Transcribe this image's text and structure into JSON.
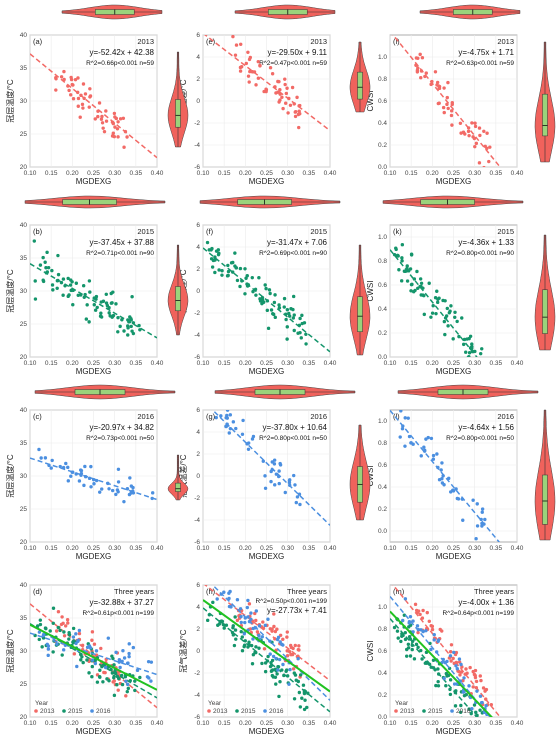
{
  "colors": {
    "y2013": "#f26a66",
    "y2015": "#14956b",
    "y2016": "#4b8fe0",
    "fit_all": "#21c221",
    "violin": "#f0625c",
    "box": "#9ad37b",
    "grid": "#ebebeb"
  },
  "legend": {
    "title": "Year",
    "items": [
      "2013",
      "2015",
      "2016"
    ]
  },
  "chart_data": [
    {
      "id": "a",
      "letter": "(a)",
      "year_label": "2013",
      "type": "scatter",
      "xlabel": "MGDEXG",
      "ylabel": "冠层温度/°C",
      "xlim": [
        0.1,
        0.4
      ],
      "xticks": [
        "0.10",
        "0.15",
        "0.20",
        "0.25",
        "0.30",
        "0.35",
        "0.40"
      ],
      "ylim": [
        20,
        40
      ],
      "yticks": [
        "20",
        "25",
        "30",
        "35",
        "40"
      ],
      "equation": "y=-52.42x + 42.38",
      "stats": "R^2=0.66p<0.001 n=59",
      "series": [
        {
          "year": "2013",
          "fit": [
            -52.42,
            42.38
          ],
          "x_range": [
            0.16,
            0.33
          ],
          "n": 59
        }
      ],
      "violin": {
        "median": 29,
        "q1": 27.5,
        "q3": 31,
        "min": 25,
        "max": 37
      },
      "top_violin": {
        "median": 0.255,
        "q1": 0.22,
        "q3": 0.29,
        "min": 0.16,
        "max": 0.34
      }
    },
    {
      "id": "e",
      "letter": "(e)",
      "year_label": "2013",
      "type": "scatter",
      "xlabel": "MGDEXG",
      "ylabel": "冠气温差/°C",
      "xlim": [
        0.1,
        0.4
      ],
      "xticks": [
        "0.10",
        "0.15",
        "0.20",
        "0.25",
        "0.30",
        "0.35",
        "0.40"
      ],
      "ylim": [
        -6,
        6
      ],
      "yticks": [
        "-6",
        "-4",
        "-2",
        "0",
        "2",
        "4",
        "6"
      ],
      "equation": "y=-29.50x + 9.11",
      "stats": "R^2=0.47p<0.001 n=59",
      "series": [
        {
          "year": "2013",
          "fit": [
            -29.5,
            9.11
          ],
          "x_range": [
            0.17,
            0.33
          ],
          "n": 59
        }
      ],
      "violin": {
        "median": 0.8,
        "q1": -0.3,
        "q3": 2.2,
        "min": -1.5,
        "max": 5
      },
      "top_violin": {
        "median": 0.255,
        "q1": 0.22,
        "q3": 0.29,
        "min": 0.16,
        "max": 0.34
      }
    },
    {
      "id": "i",
      "letter": "(i)",
      "year_label": "2013",
      "type": "scatter",
      "xlabel": "MGDEXG",
      "ylabel": "CWSI",
      "xlim": [
        0.1,
        0.4
      ],
      "xticks": [
        "0.10",
        "0.15",
        "0.20",
        "0.25",
        "0.30",
        "0.35",
        "0.40"
      ],
      "ylim": [
        0,
        1.2
      ],
      "yticks": [
        "0.0",
        "0.2",
        "0.4",
        "0.6",
        "0.8",
        "1.0"
      ],
      "equation": "y=-4.75x + 1.71",
      "stats": "R^2=0.63p<0.001 n=59",
      "series": [
        {
          "year": "2013",
          "fit": [
            -4.75,
            1.71
          ],
          "x_range": [
            0.16,
            0.34
          ],
          "n": 59
        }
      ],
      "violin": {
        "median": 0.4,
        "q1": 0.3,
        "q3": 0.7,
        "min": 0.05,
        "max": 1.2
      },
      "top_violin": {
        "median": 0.255,
        "q1": 0.22,
        "q3": 0.29,
        "min": 0.16,
        "max": 0.34
      }
    },
    {
      "id": "b",
      "letter": "(b)",
      "year_label": "2015",
      "type": "scatter",
      "xlabel": "MGDEXG",
      "ylabel": "冠层温度/°C",
      "xlim": [
        0.1,
        0.4
      ],
      "xticks": [
        "0.10",
        "0.15",
        "0.20",
        "0.25",
        "0.30",
        "0.35",
        "0.40"
      ],
      "ylim": [
        20,
        40
      ],
      "yticks": [
        "20",
        "25",
        "30",
        "35",
        "40"
      ],
      "equation": "y=-37.45x + 37.88",
      "stats": "R^2=0.71p<0.001 n=90",
      "series": [
        {
          "year": "2015",
          "fit": [
            -37.45,
            37.88
          ],
          "x_range": [
            0.11,
            0.36
          ],
          "n": 90
        }
      ],
      "violin": {
        "median": 29,
        "q1": 27.5,
        "q3": 31,
        "min": 24,
        "max": 37
      },
      "top_violin": {
        "median": 0.22,
        "q1": 0.17,
        "q3": 0.27,
        "min": 0.1,
        "max": 0.36
      }
    },
    {
      "id": "f",
      "letter": "(f)",
      "year_label": "2015",
      "type": "scatter",
      "xlabel": "MGDEXG",
      "ylabel": "冠气温差/°C",
      "xlim": [
        0.1,
        0.4
      ],
      "xticks": [
        "0.10",
        "0.15",
        "0.20",
        "0.25",
        "0.30",
        "0.35",
        "0.40"
      ],
      "ylim": [
        -6,
        6
      ],
      "yticks": [
        "-6",
        "-4",
        "-2",
        "0",
        "2",
        "4",
        "6"
      ],
      "equation": "y=-31.47x + 7.06",
      "stats": "R^2=0.69p<0.001 n=90",
      "series": [
        {
          "year": "2015",
          "fit": [
            -31.47,
            7.06
          ],
          "x_range": [
            0.11,
            0.35
          ],
          "n": 90
        }
      ],
      "violin": {
        "median": 0,
        "q1": -1.2,
        "q3": 1.5,
        "min": -3,
        "max": 5.5
      },
      "top_violin": {
        "median": 0.22,
        "q1": 0.17,
        "q3": 0.27,
        "min": 0.1,
        "max": 0.36
      }
    },
    {
      "id": "k",
      "letter": "(k)",
      "year_label": "2015",
      "type": "scatter",
      "xlabel": "MGDEXG",
      "ylabel": "CWSI",
      "xlim": [
        0.1,
        0.4
      ],
      "xticks": [
        "0.10",
        "0.15",
        "0.20",
        "0.25",
        "0.30",
        "0.35",
        "0.40"
      ],
      "ylim": [
        0,
        1.1
      ],
      "yticks": [
        "0.0",
        "0.2",
        "0.4",
        "0.6",
        "0.8",
        "1.0"
      ],
      "equation": "y=-4.36x + 1.33",
      "stats": "R^2=0.80p<0.001 n=90",
      "series": [
        {
          "year": "2015",
          "fit": [
            -4.36,
            1.33
          ],
          "x_range": [
            0.11,
            0.33
          ],
          "n": 90
        }
      ],
      "violin": {
        "median": 0.3,
        "q1": 0.15,
        "q3": 0.55,
        "min": 0,
        "max": 1.05
      },
      "top_violin": {
        "median": 0.22,
        "q1": 0.17,
        "q3": 0.27,
        "min": 0.1,
        "max": 0.36
      }
    },
    {
      "id": "c",
      "letter": "(c)",
      "year_label": "2016",
      "type": "scatter",
      "xlabel": "MGDEXG",
      "ylabel": "冠层温度/°C",
      "xlim": [
        0.1,
        0.4
      ],
      "xticks": [
        "0.10",
        "0.15",
        "0.20",
        "0.25",
        "0.30",
        "0.35",
        "0.40"
      ],
      "ylim": [
        20,
        40
      ],
      "yticks": [
        "20",
        "25",
        "30",
        "35",
        "40"
      ],
      "equation": "y=-20.97x + 34.82",
      "stats": "R^2=0.73p<0.001 n=50",
      "series": [
        {
          "year": "2016",
          "fit": [
            -20.97,
            34.82
          ],
          "x_range": [
            0.12,
            0.39
          ],
          "n": 50
        }
      ],
      "violin": {
        "median": 29,
        "q1": 28.5,
        "q3": 30,
        "min": 27,
        "max": 35
      },
      "top_violin": {
        "median": 0.25,
        "q1": 0.2,
        "q3": 0.3,
        "min": 0.12,
        "max": 0.4
      }
    },
    {
      "id": "g",
      "letter": "(g)",
      "year_label": "2016",
      "type": "scatter",
      "xlabel": "MGDEXG",
      "ylabel": "冠气温差/°C",
      "xlim": [
        0.1,
        0.4
      ],
      "xticks": [
        "0.10",
        "0.15",
        "0.20",
        "0.25",
        "0.30",
        "0.35",
        "0.40"
      ],
      "ylim": [
        -6,
        6
      ],
      "yticks": [
        "-6",
        "-4",
        "-2",
        "0",
        "2",
        "4",
        "6"
      ],
      "equation": "y=-37.80x + 10.64",
      "stats": "R^2=0.80p<0.001 n=50",
      "series": [
        {
          "year": "2016",
          "fit": [
            -37.8,
            10.64
          ],
          "x_range": [
            0.13,
            0.33
          ],
          "n": 50
        }
      ],
      "violin": {
        "median": 0,
        "q1": -1.5,
        "q3": 1.5,
        "min": -3,
        "max": 5
      },
      "top_violin": {
        "median": 0.25,
        "q1": 0.2,
        "q3": 0.3,
        "min": 0.12,
        "max": 0.4
      }
    },
    {
      "id": "l",
      "letter": "(l)",
      "year_label": "2016",
      "type": "scatter",
      "xlabel": "MGDEXG",
      "ylabel": "CWSI",
      "xlim": [
        0.1,
        0.4
      ],
      "xticks": [
        "0.10",
        "0.15",
        "0.20",
        "0.25",
        "0.30",
        "0.35",
        "0.40"
      ],
      "ylim": [
        -0.1,
        1.1
      ],
      "yticks": [
        "0.0",
        "0.2",
        "0.4",
        "0.6",
        "0.8",
        "1.0"
      ],
      "equation": "y=-4.64x + 1.56",
      "stats": "R^2=0.80p<0.001 n=50",
      "series": [
        {
          "year": "2016",
          "fit": [
            -4.64,
            1.56
          ],
          "x_range": [
            0.12,
            0.33
          ],
          "n": 50
        }
      ],
      "violin": {
        "median": 0.3,
        "q1": 0.12,
        "q3": 0.5,
        "min": 0,
        "max": 1.0
      },
      "top_violin": {
        "median": 0.25,
        "q1": 0.2,
        "q3": 0.3,
        "min": 0.12,
        "max": 0.4
      }
    },
    {
      "id": "d",
      "letter": "(d)",
      "year_label": "Three years",
      "type": "scatter",
      "xlabel": "MGDEXG",
      "ylabel": "冠层温度/°C",
      "xlim": [
        0.1,
        0.4
      ],
      "xticks": [
        "0.10",
        "0.15",
        "0.20",
        "0.25",
        "0.30",
        "0.35",
        "0.40"
      ],
      "ylim": [
        20,
        40
      ],
      "yticks": [
        "20",
        "25",
        "30",
        "35",
        "40"
      ],
      "equation": "y=-32.88x + 37.27",
      "stats": "R^2=0.61p<0.001 n=199",
      "series": [
        {
          "year": "2013",
          "fit": [
            -52.42,
            42.38
          ],
          "x_range": [
            0.16,
            0.33
          ],
          "n": 59
        },
        {
          "year": "2015",
          "fit": [
            -37.45,
            37.88
          ],
          "x_range": [
            0.11,
            0.36
          ],
          "n": 90
        },
        {
          "year": "2016",
          "fit": [
            -20.97,
            34.82
          ],
          "x_range": [
            0.12,
            0.39
          ],
          "n": 50
        }
      ],
      "overall_fit": [
        -32.88,
        37.27
      ],
      "legend_in_plot": true
    },
    {
      "id": "h",
      "letter": "(h)",
      "year_label": "Three years",
      "type": "scatter",
      "xlabel": "MGDEXG",
      "ylabel": "冠气温差/°C",
      "xlim": [
        0.1,
        0.4
      ],
      "xticks": [
        "0.10",
        "0.15",
        "0.20",
        "0.25",
        "0.30",
        "0.35",
        "0.40"
      ],
      "ylim": [
        -6,
        6
      ],
      "yticks": [
        "-6",
        "-4",
        "-2",
        "0",
        "2",
        "4",
        "6"
      ],
      "equation": "y=-27.73x + 7.41",
      "stats": "R^2=0.50p<0.001 n=199",
      "series": [
        {
          "year": "2013",
          "fit": [
            -29.5,
            9.11
          ],
          "x_range": [
            0.17,
            0.33
          ],
          "n": 59
        },
        {
          "year": "2015",
          "fit": [
            -31.47,
            7.06
          ],
          "x_range": [
            0.11,
            0.35
          ],
          "n": 90
        },
        {
          "year": "2016",
          "fit": [
            -37.8,
            10.64
          ],
          "x_range": [
            0.13,
            0.33
          ],
          "n": 50
        }
      ],
      "overall_fit": [
        -27.73,
        7.41
      ],
      "stats_above": true,
      "legend_in_plot": true
    },
    {
      "id": "m",
      "letter": "(m)",
      "year_label": "Three years",
      "type": "scatter",
      "xlabel": "MGDEXG",
      "ylabel": "CWSI",
      "xlim": [
        0.1,
        0.4
      ],
      "xticks": [
        "0.10",
        "0.15",
        "0.20",
        "0.25",
        "0.30",
        "0.35",
        "0.40"
      ],
      "ylim": [
        0,
        1.2
      ],
      "yticks": [
        "0.0",
        "0.2",
        "0.4",
        "0.6",
        "0.8",
        "1.0"
      ],
      "equation": "y=-4.00x + 1.36",
      "stats": "R^2=0.64p<0.001 n=199",
      "series": [
        {
          "year": "2013",
          "fit": [
            -4.75,
            1.71
          ],
          "x_range": [
            0.16,
            0.34
          ],
          "n": 59
        },
        {
          "year": "2015",
          "fit": [
            -4.36,
            1.33
          ],
          "x_range": [
            0.11,
            0.33
          ],
          "n": 90
        },
        {
          "year": "2016",
          "fit": [
            -4.64,
            1.56
          ],
          "x_range": [
            0.12,
            0.33
          ],
          "n": 50
        }
      ],
      "overall_fit": [
        -4.0,
        1.36
      ],
      "legend_in_plot": true
    }
  ]
}
